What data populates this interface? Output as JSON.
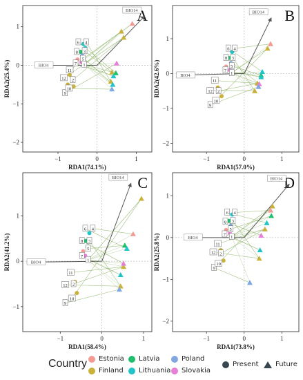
{
  "chart_data": [
    {
      "type": "scatter",
      "panel": "A",
      "xlabel": "RDA1(74.1%)",
      "ylabel": "RDA2(25.4%)",
      "xticks": [
        "−1",
        "0",
        "1"
      ],
      "yticks": [
        "1",
        "0",
        "−1",
        "−2"
      ],
      "vectors": [
        {
          "label": "BIO14",
          "x": 1.22,
          "y": 1.28
        },
        {
          "label": "BIO4",
          "x": -1.6,
          "y": 0.0
        }
      ],
      "sites": [
        {
          "label": "1",
          "x": -0.33,
          "y": 0.02
        },
        {
          "label": "2",
          "x": -0.62,
          "y": -0.38
        },
        {
          "label": "3",
          "x": -0.32,
          "y": 0.37
        },
        {
          "label": "4",
          "x": -0.28,
          "y": 0.6
        },
        {
          "label": "5",
          "x": -0.36,
          "y": 0.17
        },
        {
          "label": "6",
          "x": -0.48,
          "y": 0.6
        },
        {
          "label": "7",
          "x": -0.55,
          "y": 0.05
        },
        {
          "label": "8",
          "x": -0.52,
          "y": 0.35
        },
        {
          "label": "9",
          "x": -0.82,
          "y": -0.72
        },
        {
          "label": "10",
          "x": -0.72,
          "y": -0.6
        },
        {
          "label": "11",
          "x": -0.7,
          "y": -0.13
        },
        {
          "label": "12",
          "x": -0.85,
          "y": -0.33
        }
      ],
      "present_points": [
        {
          "country": "Finland",
          "x": -0.55,
          "y": 0.05
        },
        {
          "country": "Finland",
          "x": -0.75,
          "y": -0.5
        },
        {
          "country": "Finland",
          "x": -0.6,
          "y": -0.55
        },
        {
          "country": "Finland",
          "x": -0.7,
          "y": -0.25
        },
        {
          "country": "Estonia",
          "x": -0.5,
          "y": 0.15
        },
        {
          "country": "Latvia",
          "x": -0.42,
          "y": 0.35
        },
        {
          "country": "Lithuania",
          "x": -0.35,
          "y": 0.55
        },
        {
          "country": "Lithuania",
          "x": -0.3,
          "y": 0.45
        },
        {
          "country": "Slovakia",
          "x": -0.4,
          "y": 0.08
        },
        {
          "country": "Poland",
          "x": -0.38,
          "y": 0.25
        }
      ],
      "future_points": [
        {
          "country": "Finland",
          "x": 0.62,
          "y": 0.88
        },
        {
          "country": "Finland",
          "x": 0.68,
          "y": 0.72
        },
        {
          "country": "Finland",
          "x": 0.38,
          "y": -0.18
        },
        {
          "country": "Finland",
          "x": 0.35,
          "y": -0.42
        },
        {
          "country": "Estonia",
          "x": 0.9,
          "y": 1.08
        },
        {
          "country": "Latvia",
          "x": 0.48,
          "y": -0.2
        },
        {
          "country": "Lithuania",
          "x": 0.42,
          "y": -0.28
        },
        {
          "country": "Lithuania",
          "x": 0.4,
          "y": -0.5
        },
        {
          "country": "Slovakia",
          "x": 0.5,
          "y": 0.05
        },
        {
          "country": "Poland",
          "x": 0.38,
          "y": -0.62
        }
      ]
    },
    {
      "type": "scatter",
      "panel": "B",
      "xlabel": "RDA1(57.0%)",
      "ylabel": "RDA2(42.6%)",
      "xticks": [
        "−1",
        "0",
        "1"
      ],
      "yticks": [
        "1",
        "0",
        "−1",
        "−2"
      ],
      "vectors": [
        {
          "label": "BIO14",
          "x": 0.72,
          "y": 1.6
        },
        {
          "label": "BIO4",
          "x": -1.8,
          "y": -0.05
        }
      ],
      "sites": [
        {
          "label": "1",
          "x": -0.33,
          "y": 0.02
        },
        {
          "label": "2",
          "x": -0.68,
          "y": -0.5
        },
        {
          "label": "3",
          "x": -0.3,
          "y": 0.45
        },
        {
          "label": "4",
          "x": -0.25,
          "y": 0.72
        },
        {
          "label": "5",
          "x": -0.33,
          "y": 0.22
        },
        {
          "label": "6",
          "x": -0.42,
          "y": 0.72
        },
        {
          "label": "7",
          "x": -0.5,
          "y": 0.1
        },
        {
          "label": "8",
          "x": -0.48,
          "y": 0.45
        },
        {
          "label": "9",
          "x": -0.9,
          "y": -0.9
        },
        {
          "label": "10",
          "x": -0.75,
          "y": -0.78
        },
        {
          "label": "11",
          "x": -0.78,
          "y": -0.2
        },
        {
          "label": "12",
          "x": -0.9,
          "y": -0.5
        }
      ],
      "present_points": [
        {
          "country": "Finland",
          "x": -0.6,
          "y": -0.65
        },
        {
          "country": "Finland",
          "x": -0.7,
          "y": -0.4
        },
        {
          "country": "Estonia",
          "x": -0.48,
          "y": 0.2
        },
        {
          "country": "Latvia",
          "x": -0.4,
          "y": 0.45
        },
        {
          "country": "Lithuania",
          "x": -0.32,
          "y": 0.62
        },
        {
          "country": "Slovakia",
          "x": -0.38,
          "y": 0.1
        },
        {
          "country": "Poland",
          "x": -0.35,
          "y": 0.3
        }
      ],
      "future_points": [
        {
          "country": "Finland",
          "x": 0.62,
          "y": 0.72
        },
        {
          "country": "Finland",
          "x": 0.35,
          "y": -0.28
        },
        {
          "country": "Finland",
          "x": 0.28,
          "y": -0.5
        },
        {
          "country": "Estonia",
          "x": 0.7,
          "y": 0.85
        },
        {
          "country": "Latvia",
          "x": 0.45,
          "y": -0.05
        },
        {
          "country": "Lithuania",
          "x": 0.48,
          "y": 0.05
        },
        {
          "country": "Lithuania",
          "x": 0.45,
          "y": -0.1
        },
        {
          "country": "Slovakia",
          "x": 0.4,
          "y": -0.3
        },
        {
          "country": "Poland",
          "x": 0.38,
          "y": -0.38
        }
      ]
    },
    {
      "type": "scatter",
      "panel": "C",
      "xlabel": "RDA1(58.4%)",
      "ylabel": "RDA2(41.2%)",
      "xticks": [
        "−1",
        "0",
        "1"
      ],
      "yticks": [
        "1",
        "0",
        "−1"
      ],
      "vectors": [
        {
          "label": "BIO14",
          "x": 0.7,
          "y": 1.72
        },
        {
          "label": "BIO4",
          "x": -1.8,
          "y": -0.02
        }
      ],
      "sites": [
        {
          "label": "1",
          "x": -0.33,
          "y": 0.03
        },
        {
          "label": "2",
          "x": -0.68,
          "y": -0.5
        },
        {
          "label": "3",
          "x": -0.3,
          "y": 0.45
        },
        {
          "label": "4",
          "x": -0.22,
          "y": 0.72
        },
        {
          "label": "5",
          "x": -0.33,
          "y": 0.28
        },
        {
          "label": "6",
          "x": -0.4,
          "y": 0.72
        },
        {
          "label": "7",
          "x": -0.48,
          "y": 0.12
        },
        {
          "label": "8",
          "x": -0.48,
          "y": 0.45
        },
        {
          "label": "9",
          "x": -0.88,
          "y": -0.92
        },
        {
          "label": "10",
          "x": -0.72,
          "y": -0.82
        },
        {
          "label": "11",
          "x": -0.75,
          "y": -0.25
        },
        {
          "label": "12",
          "x": -0.88,
          "y": -0.52
        }
      ],
      "present_points": [
        {
          "country": "Finland",
          "x": -0.6,
          "y": -0.7
        },
        {
          "country": "Finland",
          "x": -0.65,
          "y": -0.45
        },
        {
          "country": "Estonia",
          "x": -0.45,
          "y": 0.22
        },
        {
          "country": "Latvia",
          "x": -0.38,
          "y": 0.45
        },
        {
          "country": "Lithuania",
          "x": -0.3,
          "y": 0.62
        },
        {
          "country": "Slovakia",
          "x": -0.4,
          "y": 0.12
        },
        {
          "country": "Poland",
          "x": -0.35,
          "y": 0.32
        }
      ],
      "future_points": [
        {
          "country": "Finland",
          "x": 0.95,
          "y": 1.38
        },
        {
          "country": "Finland",
          "x": 0.52,
          "y": -0.12
        },
        {
          "country": "Finland",
          "x": 0.45,
          "y": -0.55
        },
        {
          "country": "Estonia",
          "x": 0.75,
          "y": 0.6
        },
        {
          "country": "Latvia",
          "x": 0.55,
          "y": 0.35
        },
        {
          "country": "Lithuania",
          "x": 0.6,
          "y": 0.28
        },
        {
          "country": "Lithuania",
          "x": 0.45,
          "y": -0.3
        },
        {
          "country": "Slovakia",
          "x": 0.52,
          "y": -0.05
        },
        {
          "country": "Poland",
          "x": 0.42,
          "y": -0.62
        }
      ]
    },
    {
      "type": "scatter",
      "panel": "D",
      "xlabel": "RDA1(73.8%)",
      "ylabel": "RDA2(25.8%)",
      "xticks": [
        "−1",
        "0",
        "1"
      ],
      "yticks": [
        "1",
        "0",
        "−1",
        "−2"
      ],
      "vectors": [
        {
          "label": "BIO14",
          "x": 1.2,
          "y": 1.28
        },
        {
          "label": "BIO4",
          "x": -1.6,
          "y": 0.0
        }
      ],
      "sites": [
        {
          "label": "1",
          "x": -0.33,
          "y": 0.02
        },
        {
          "label": "2",
          "x": -0.62,
          "y": -0.38
        },
        {
          "label": "3",
          "x": -0.3,
          "y": 0.4
        },
        {
          "label": "4",
          "x": -0.25,
          "y": 0.6
        },
        {
          "label": "5",
          "x": -0.36,
          "y": 0.2
        },
        {
          "label": "6",
          "x": -0.45,
          "y": 0.6
        },
        {
          "label": "7",
          "x": -0.52,
          "y": 0.08
        },
        {
          "label": "8",
          "x": -0.5,
          "y": 0.38
        },
        {
          "label": "9",
          "x": -0.8,
          "y": -0.72
        },
        {
          "label": "10",
          "x": -0.68,
          "y": -0.62
        },
        {
          "label": "11",
          "x": -0.7,
          "y": -0.15
        },
        {
          "label": "12",
          "x": -0.82,
          "y": -0.35
        }
      ],
      "present_points": [
        {
          "country": "Finland",
          "x": -0.55,
          "y": -0.55
        },
        {
          "country": "Finland",
          "x": -0.62,
          "y": -0.3
        },
        {
          "country": "Estonia",
          "x": -0.48,
          "y": 0.18
        },
        {
          "country": "Latvia",
          "x": -0.4,
          "y": 0.4
        },
        {
          "country": "Lithuania",
          "x": -0.32,
          "y": 0.55
        },
        {
          "country": "Slovakia",
          "x": -0.38,
          "y": 0.1
        },
        {
          "country": "Poland",
          "x": -0.36,
          "y": 0.28
        }
      ],
      "future_points": [
        {
          "country": "Finland",
          "x": 0.75,
          "y": 0.75
        },
        {
          "country": "Finland",
          "x": 0.55,
          "y": 0.2
        },
        {
          "country": "Finland",
          "x": 0.4,
          "y": -0.5
        },
        {
          "country": "Estonia",
          "x": 0.7,
          "y": 0.65
        },
        {
          "country": "Latvia",
          "x": 0.72,
          "y": 0.52
        },
        {
          "country": "Lithuania",
          "x": 0.6,
          "y": 0.35
        },
        {
          "country": "Lithuania",
          "x": 0.42,
          "y": -0.3
        },
        {
          "country": "Slovakia",
          "x": 0.45,
          "y": 0.05
        },
        {
          "country": "Poland",
          "x": 0.15,
          "y": -1.08
        }
      ]
    }
  ],
  "legend": {
    "title": "Country",
    "countries": [
      {
        "name": "Estonia",
        "color": "#f29a94"
      },
      {
        "name": "Latvia",
        "color": "#1fbf6e"
      },
      {
        "name": "Poland",
        "color": "#7fa8e0"
      },
      {
        "name": "Finland",
        "color": "#c9b13a"
      },
      {
        "name": "Lithuania",
        "color": "#20c4c9"
      },
      {
        "name": "Slovakia",
        "color": "#e77fd9"
      }
    ],
    "present_label": "Present",
    "future_label": "Future",
    "shape_color": "#37474f"
  },
  "colors": {
    "line": "#8fb46a",
    "arrow": "#555555",
    "zero_line": "#bbbbbb"
  }
}
